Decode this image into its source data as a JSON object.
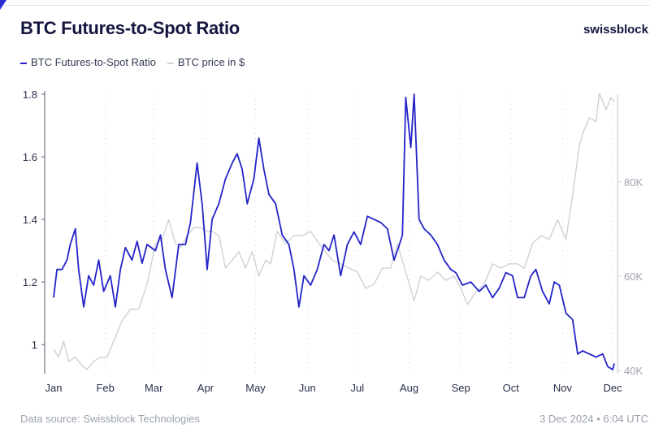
{
  "header": {
    "title": "BTC Futures-to-Spot Ratio",
    "logo": "swissblock"
  },
  "footer": {
    "source": "Data source: Swissblock Technologies",
    "timestamp": "3 Dec 2024 • 6:04 UTC"
  },
  "chart_data": {
    "type": "line",
    "title": "BTC Futures-to-Spot Ratio",
    "legend_placement": "top-left",
    "grid": "vertical dotted",
    "x_ticks": [
      "Jan",
      "Feb",
      "Mar",
      "Apr",
      "May",
      "Jun",
      "Jul",
      "Aug",
      "Sep",
      "Oct",
      "Nov",
      "Dec"
    ],
    "y_left": {
      "ticks": [
        "1.8",
        "1.6",
        "1.4",
        "1.2",
        "1"
      ],
      "range": [
        0.907,
        1.8
      ]
    },
    "y_right": {
      "ticks": [
        "80K",
        "60K",
        "40K"
      ],
      "range": [
        39300,
        98600
      ]
    },
    "series": [
      {
        "name": "BTC Futures-to-Spot Ratio",
        "axis": "left",
        "color": "#2323c8",
        "points": [
          [
            "2024-01-01",
            1.15
          ],
          [
            "2024-01-03",
            1.24
          ],
          [
            "2024-01-06",
            1.24
          ],
          [
            "2024-01-09",
            1.27
          ],
          [
            "2024-01-11",
            1.32
          ],
          [
            "2024-01-14",
            1.37
          ],
          [
            "2024-01-16",
            1.24
          ],
          [
            "2024-01-19",
            1.12
          ],
          [
            "2024-01-22",
            1.22
          ],
          [
            "2024-01-25",
            1.19
          ],
          [
            "2024-01-28",
            1.27
          ],
          [
            "2024-01-31",
            1.17
          ],
          [
            "2024-02-04",
            1.22
          ],
          [
            "2024-02-07",
            1.12
          ],
          [
            "2024-02-10",
            1.24
          ],
          [
            "2024-02-13",
            1.31
          ],
          [
            "2024-02-17",
            1.27
          ],
          [
            "2024-02-20",
            1.33
          ],
          [
            "2024-02-23",
            1.26
          ],
          [
            "2024-02-26",
            1.32
          ],
          [
            "2024-03-02",
            1.3
          ],
          [
            "2024-03-05",
            1.35
          ],
          [
            "2024-03-08",
            1.24
          ],
          [
            "2024-03-12",
            1.15
          ],
          [
            "2024-03-16",
            1.32
          ],
          [
            "2024-03-20",
            1.32
          ],
          [
            "2024-03-23",
            1.39
          ],
          [
            "2024-03-27",
            1.58
          ],
          [
            "2024-03-30",
            1.45
          ],
          [
            "2024-04-02",
            1.24
          ],
          [
            "2024-04-05",
            1.4
          ],
          [
            "2024-04-09",
            1.45
          ],
          [
            "2024-04-13",
            1.53
          ],
          [
            "2024-04-17",
            1.58
          ],
          [
            "2024-04-20",
            1.61
          ],
          [
            "2024-04-23",
            1.56
          ],
          [
            "2024-04-26",
            1.45
          ],
          [
            "2024-04-30",
            1.53
          ],
          [
            "2024-05-03",
            1.66
          ],
          [
            "2024-05-06",
            1.56
          ],
          [
            "2024-05-09",
            1.48
          ],
          [
            "2024-05-13",
            1.45
          ],
          [
            "2024-05-17",
            1.35
          ],
          [
            "2024-05-21",
            1.32
          ],
          [
            "2024-05-24",
            1.24
          ],
          [
            "2024-05-27",
            1.12
          ],
          [
            "2024-05-30",
            1.22
          ],
          [
            "2024-06-03",
            1.19
          ],
          [
            "2024-06-07",
            1.24
          ],
          [
            "2024-06-11",
            1.32
          ],
          [
            "2024-06-14",
            1.3
          ],
          [
            "2024-06-17",
            1.35
          ],
          [
            "2024-06-21",
            1.22
          ],
          [
            "2024-06-25",
            1.32
          ],
          [
            "2024-06-29",
            1.36
          ],
          [
            "2024-07-03",
            1.32
          ],
          [
            "2024-07-07",
            1.41
          ],
          [
            "2024-07-11",
            1.4
          ],
          [
            "2024-07-15",
            1.39
          ],
          [
            "2024-07-19",
            1.37
          ],
          [
            "2024-07-23",
            1.27
          ],
          [
            "2024-07-25",
            1.3
          ],
          [
            "2024-07-28",
            1.35
          ],
          [
            "2024-07-30",
            1.79
          ],
          [
            "2024-08-02",
            1.63
          ],
          [
            "2024-08-04",
            1.8
          ],
          [
            "2024-08-07",
            1.4
          ],
          [
            "2024-08-10",
            1.37
          ],
          [
            "2024-08-14",
            1.35
          ],
          [
            "2024-08-18",
            1.32
          ],
          [
            "2024-08-22",
            1.27
          ],
          [
            "2024-08-26",
            1.24
          ],
          [
            "2024-08-29",
            1.23
          ],
          [
            "2024-09-02",
            1.19
          ],
          [
            "2024-09-07",
            1.2
          ],
          [
            "2024-09-12",
            1.17
          ],
          [
            "2024-09-16",
            1.19
          ],
          [
            "2024-09-20",
            1.15
          ],
          [
            "2024-09-24",
            1.18
          ],
          [
            "2024-09-28",
            1.23
          ],
          [
            "2024-10-02",
            1.22
          ],
          [
            "2024-10-05",
            1.15
          ],
          [
            "2024-10-09",
            1.15
          ],
          [
            "2024-10-13",
            1.22
          ],
          [
            "2024-10-16",
            1.24
          ],
          [
            "2024-10-20",
            1.17
          ],
          [
            "2024-10-24",
            1.13
          ],
          [
            "2024-10-27",
            1.2
          ],
          [
            "2024-10-30",
            1.19
          ],
          [
            "2024-11-03",
            1.1
          ],
          [
            "2024-11-07",
            1.08
          ],
          [
            "2024-11-10",
            0.97
          ],
          [
            "2024-11-13",
            0.98
          ],
          [
            "2024-11-17",
            0.97
          ],
          [
            "2024-11-21",
            0.96
          ],
          [
            "2024-11-25",
            0.97
          ],
          [
            "2024-11-28",
            0.93
          ],
          [
            "2024-12-01",
            0.92
          ],
          [
            "2024-12-02",
            0.94
          ]
        ]
      },
      {
        "name": "BTC price in $",
        "axis": "right",
        "color": "#cfd1d8",
        "points": [
          [
            "2024-01-01",
            44500
          ],
          [
            "2024-01-04",
            42800
          ],
          [
            "2024-01-07",
            46200
          ],
          [
            "2024-01-10",
            41900
          ],
          [
            "2024-01-14",
            42800
          ],
          [
            "2024-01-18",
            41000
          ],
          [
            "2024-01-21",
            40200
          ],
          [
            "2024-01-25",
            41900
          ],
          [
            "2024-01-29",
            42800
          ],
          [
            "2024-02-02",
            42800
          ],
          [
            "2024-02-06",
            46200
          ],
          [
            "2024-02-11",
            50500
          ],
          [
            "2024-02-16",
            53000
          ],
          [
            "2024-02-21",
            53000
          ],
          [
            "2024-02-26",
            58300
          ],
          [
            "2024-02-28",
            61700
          ],
          [
            "2024-03-02",
            66900
          ],
          [
            "2024-03-06",
            67800
          ],
          [
            "2024-03-10",
            72000
          ],
          [
            "2024-03-14",
            66900
          ],
          [
            "2024-03-17",
            66000
          ],
          [
            "2024-03-21",
            68600
          ],
          [
            "2024-03-25",
            70300
          ],
          [
            "2024-03-29",
            70300
          ],
          [
            "2024-04-02",
            69500
          ],
          [
            "2024-04-05",
            69500
          ],
          [
            "2024-04-09",
            68600
          ],
          [
            "2024-04-13",
            61700
          ],
          [
            "2024-04-17",
            63400
          ],
          [
            "2024-04-21",
            65200
          ],
          [
            "2024-04-25",
            61700
          ],
          [
            "2024-04-29",
            65200
          ],
          [
            "2024-05-03",
            60000
          ],
          [
            "2024-05-07",
            63400
          ],
          [
            "2024-05-10",
            62600
          ],
          [
            "2024-05-14",
            69500
          ],
          [
            "2024-05-19",
            66900
          ],
          [
            "2024-05-24",
            68600
          ],
          [
            "2024-05-29",
            68600
          ],
          [
            "2024-06-03",
            69500
          ],
          [
            "2024-06-08",
            66900
          ],
          [
            "2024-06-12",
            65200
          ],
          [
            "2024-06-16",
            63400
          ],
          [
            "2024-06-21",
            62600
          ],
          [
            "2024-06-26",
            61700
          ],
          [
            "2024-07-01",
            60900
          ],
          [
            "2024-07-06",
            57400
          ],
          [
            "2024-07-11",
            58300
          ],
          [
            "2024-07-16",
            61700
          ],
          [
            "2024-07-21",
            61700
          ],
          [
            "2024-07-25",
            66900
          ],
          [
            "2024-07-30",
            60900
          ],
          [
            "2024-08-04",
            54800
          ],
          [
            "2024-08-08",
            60000
          ],
          [
            "2024-08-13",
            59100
          ],
          [
            "2024-08-18",
            60900
          ],
          [
            "2024-08-23",
            59100
          ],
          [
            "2024-08-28",
            60000
          ],
          [
            "2024-09-01",
            57400
          ],
          [
            "2024-09-05",
            54000
          ],
          [
            "2024-09-10",
            56600
          ],
          [
            "2024-09-15",
            58300
          ],
          [
            "2024-09-20",
            62600
          ],
          [
            "2024-09-25",
            61700
          ],
          [
            "2024-09-30",
            62600
          ],
          [
            "2024-10-05",
            62600
          ],
          [
            "2024-10-09",
            61700
          ],
          [
            "2024-10-14",
            66900
          ],
          [
            "2024-10-19",
            68600
          ],
          [
            "2024-10-24",
            67800
          ],
          [
            "2024-10-29",
            72000
          ],
          [
            "2024-11-03",
            67800
          ],
          [
            "2024-11-07",
            77200
          ],
          [
            "2024-11-11",
            87600
          ],
          [
            "2024-11-13",
            90200
          ],
          [
            "2024-11-17",
            93600
          ],
          [
            "2024-11-21",
            92800
          ],
          [
            "2024-11-23",
            98800
          ],
          [
            "2024-11-27",
            95300
          ],
          [
            "2024-11-30",
            97900
          ],
          [
            "2024-12-02",
            97000
          ]
        ]
      }
    ]
  }
}
